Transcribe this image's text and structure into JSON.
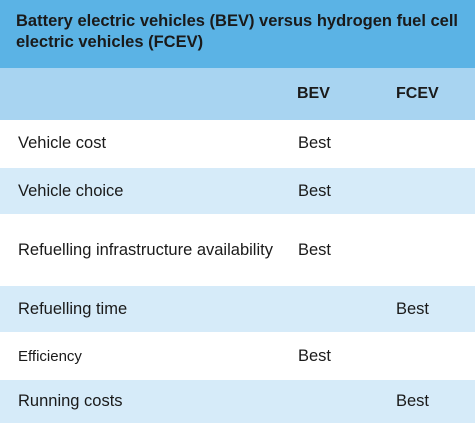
{
  "table": {
    "title": "Battery electric vehicles (BEV) versus hydrogen fuel cell electric vehicles (FCEV)",
    "columns": [
      "",
      "BEV",
      "FCEV"
    ],
    "rows": [
      {
        "label": "Vehicle cost",
        "bev": "Best",
        "fcev": ""
      },
      {
        "label": "Vehicle choice",
        "bev": "Best",
        "fcev": ""
      },
      {
        "label": "Refuelling infrastructure availability",
        "bev": "Best",
        "fcev": ""
      },
      {
        "label": "Refuelling time",
        "bev": "",
        "fcev": "Best"
      },
      {
        "label": "Efficiency",
        "bev": "Best",
        "fcev": ""
      },
      {
        "label": "Running costs",
        "bev": "",
        "fcev": "Best"
      }
    ]
  },
  "colors": {
    "title_bg": "#5bb3e5",
    "header_bg": "#a8d4f1",
    "row_alt_bg": "#d6ebf9"
  }
}
